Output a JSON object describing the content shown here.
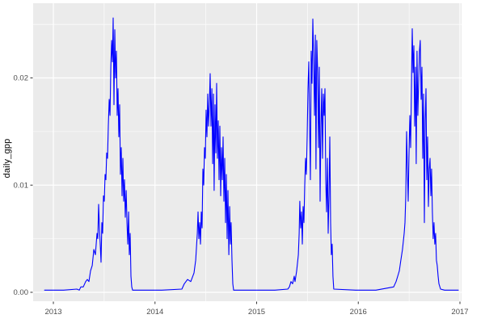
{
  "figure": {
    "title": "",
    "background": "#FFFFFF"
  },
  "style": {
    "panel_bg": "#EBEBEB",
    "grid_color": "#FFFFFF",
    "tick_label_color": "#4D4D4D",
    "axis_title_color": "#000000",
    "tick_mark_color": "#333333",
    "line_color": "#0000FF",
    "line_width": 1.1
  },
  "chart_data": {
    "type": "line",
    "title": "",
    "xlabel": "",
    "ylabel": "daily_gpp",
    "x_unit": "decimal_year",
    "xlim": [
      2012.801,
      2017.016
    ],
    "ylim": [
      -0.00083,
      0.02697
    ],
    "x_major_ticks": [
      2013,
      2014,
      2015,
      2016,
      2017
    ],
    "x_tick_labels": [
      "2013",
      "2014",
      "2015",
      "2016",
      "2017"
    ],
    "x_minor_ticks": [
      2013.5,
      2014.5,
      2015.5,
      2016.5
    ],
    "y_major_ticks": [
      0,
      0.01,
      0.02
    ],
    "y_tick_labels": [
      "0.00",
      "0.01",
      "0.02"
    ],
    "y_minor_ticks": [
      0.005,
      0.015,
      0.025
    ],
    "grid": true,
    "legend": "none",
    "series": [
      {
        "name": "daily_gpp",
        "color": "#0000FF",
        "points": [
          [
            2012.913,
            0.0002
          ],
          [
            2013.1,
            0.0002
          ],
          [
            2013.231,
            0.0003
          ],
          [
            2013.255,
            0.0002
          ],
          [
            2013.27,
            0.0005
          ],
          [
            2013.294,
            0.0005
          ],
          [
            2013.318,
            0.001
          ],
          [
            2013.334,
            0.0012
          ],
          [
            2013.35,
            0.001
          ],
          [
            2013.366,
            0.002
          ],
          [
            2013.382,
            0.0025
          ],
          [
            2013.398,
            0.004
          ],
          [
            2013.413,
            0.0035
          ],
          [
            2013.429,
            0.0055
          ],
          [
            2013.437,
            0.005
          ],
          [
            2013.445,
            0.0082
          ],
          [
            2013.453,
            0.006
          ],
          [
            2013.461,
            0.0045
          ],
          [
            2013.469,
            0.0028
          ],
          [
            2013.477,
            0.0065
          ],
          [
            2013.485,
            0.0055
          ],
          [
            2013.493,
            0.009
          ],
          [
            2013.501,
            0.0085
          ],
          [
            2013.509,
            0.011
          ],
          [
            2013.517,
            0.0105
          ],
          [
            2013.525,
            0.013
          ],
          [
            2013.533,
            0.0125
          ],
          [
            2013.541,
            0.0155
          ],
          [
            2013.549,
            0.018
          ],
          [
            2013.557,
            0.0165
          ],
          [
            2013.565,
            0.021
          ],
          [
            2013.573,
            0.0235
          ],
          [
            2013.581,
            0.0215
          ],
          [
            2013.588,
            0.0256
          ],
          [
            2013.596,
            0.0175
          ],
          [
            2013.604,
            0.0245
          ],
          [
            2013.612,
            0.02
          ],
          [
            2013.62,
            0.0225
          ],
          [
            2013.628,
            0.0165
          ],
          [
            2013.636,
            0.019
          ],
          [
            2013.644,
            0.0145
          ],
          [
            2013.652,
            0.0175
          ],
          [
            2013.66,
            0.011
          ],
          [
            2013.668,
            0.0135
          ],
          [
            2013.676,
            0.009
          ],
          [
            2013.684,
            0.0125
          ],
          [
            2013.692,
            0.0085
          ],
          [
            2013.7,
            0.0105
          ],
          [
            2013.708,
            0.007
          ],
          [
            2013.716,
            0.0095
          ],
          [
            2013.724,
            0.0065
          ],
          [
            2013.732,
            0.0045
          ],
          [
            2013.74,
            0.0075
          ],
          [
            2013.747,
            0.0035
          ],
          [
            2013.755,
            0.0055
          ],
          [
            2013.763,
            0.0015
          ],
          [
            2013.771,
            0.0005
          ],
          [
            2013.779,
            0.0002
          ],
          [
            2013.867,
            0.0002
          ],
          [
            2014.066,
            0.0002
          ],
          [
            2014.264,
            0.0003
          ],
          [
            2014.288,
            0.0008
          ],
          [
            2014.32,
            0.0012
          ],
          [
            2014.352,
            0.001
          ],
          [
            2014.384,
            0.0018
          ],
          [
            2014.4,
            0.003
          ],
          [
            2014.416,
            0.0055
          ],
          [
            2014.423,
            0.0075
          ],
          [
            2014.431,
            0.005
          ],
          [
            2014.439,
            0.0065
          ],
          [
            2014.447,
            0.0045
          ],
          [
            2014.455,
            0.0075
          ],
          [
            2014.463,
            0.006
          ],
          [
            2014.471,
            0.0115
          ],
          [
            2014.479,
            0.01
          ],
          [
            2014.487,
            0.0135
          ],
          [
            2014.495,
            0.0125
          ],
          [
            2014.503,
            0.017
          ],
          [
            2014.511,
            0.0145
          ],
          [
            2014.519,
            0.0185
          ],
          [
            2014.527,
            0.0155
          ],
          [
            2014.535,
            0.0175
          ],
          [
            2014.543,
            0.0204
          ],
          [
            2014.551,
            0.0155
          ],
          [
            2014.559,
            0.019
          ],
          [
            2014.567,
            0.012
          ],
          [
            2014.575,
            0.0185
          ],
          [
            2014.582,
            0.0095
          ],
          [
            2014.59,
            0.0175
          ],
          [
            2014.598,
            0.013
          ],
          [
            2014.606,
            0.0195
          ],
          [
            2014.614,
            0.0125
          ],
          [
            2014.622,
            0.016
          ],
          [
            2014.63,
            0.0105
          ],
          [
            2014.638,
            0.0155
          ],
          [
            2014.646,
            0.009
          ],
          [
            2014.654,
            0.0135
          ],
          [
            2014.662,
            0.0105
          ],
          [
            2014.67,
            0.0145
          ],
          [
            2014.678,
            0.0085
          ],
          [
            2014.686,
            0.0125
          ],
          [
            2014.694,
            0.0065
          ],
          [
            2014.702,
            0.011
          ],
          [
            2014.71,
            0.005
          ],
          [
            2014.718,
            0.0095
          ],
          [
            2014.726,
            0.0035
          ],
          [
            2014.734,
            0.008
          ],
          [
            2014.742,
            0.0045
          ],
          [
            2014.749,
            0.0065
          ],
          [
            2014.757,
            0.003
          ],
          [
            2014.765,
            0.0008
          ],
          [
            2014.773,
            0.0002
          ],
          [
            2014.94,
            0.0002
          ],
          [
            2015.179,
            0.0002
          ],
          [
            2015.306,
            0.0003
          ],
          [
            2015.322,
            0.0005
          ],
          [
            2015.338,
            0.001
          ],
          [
            2015.354,
            0.0008
          ],
          [
            2015.37,
            0.0015
          ],
          [
            2015.378,
            0.001
          ],
          [
            2015.394,
            0.002
          ],
          [
            2015.41,
            0.0035
          ],
          [
            2015.418,
            0.0055
          ],
          [
            2015.425,
            0.0085
          ],
          [
            2015.433,
            0.006
          ],
          [
            2015.441,
            0.0075
          ],
          [
            2015.449,
            0.0045
          ],
          [
            2015.457,
            0.008
          ],
          [
            2015.465,
            0.0065
          ],
          [
            2015.473,
            0.01
          ],
          [
            2015.481,
            0.0125
          ],
          [
            2015.489,
            0.011
          ],
          [
            2015.497,
            0.0145
          ],
          [
            2015.505,
            0.019
          ],
          [
            2015.513,
            0.0215
          ],
          [
            2015.521,
            0.016
          ],
          [
            2015.529,
            0.0105
          ],
          [
            2015.537,
            0.0225
          ],
          [
            2015.545,
            0.0195
          ],
          [
            2015.553,
            0.0255
          ],
          [
            2015.561,
            0.022
          ],
          [
            2015.569,
            0.0165
          ],
          [
            2015.577,
            0.024
          ],
          [
            2015.584,
            0.0115
          ],
          [
            2015.592,
            0.0235
          ],
          [
            2015.6,
            0.0205
          ],
          [
            2015.608,
            0.0135
          ],
          [
            2015.616,
            0.021
          ],
          [
            2015.624,
            0.0085
          ],
          [
            2015.632,
            0.0155
          ],
          [
            2015.64,
            0.019
          ],
          [
            2015.648,
            0.0125
          ],
          [
            2015.656,
            0.0185
          ],
          [
            2015.664,
            0.0165
          ],
          [
            2015.672,
            0.019
          ],
          [
            2015.68,
            0.0105
          ],
          [
            2015.688,
            0.0075
          ],
          [
            2015.696,
            0.0125
          ],
          [
            2015.704,
            0.0055
          ],
          [
            2015.712,
            0.009
          ],
          [
            2015.72,
            0.0145
          ],
          [
            2015.728,
            0.0065
          ],
          [
            2015.735,
            0.0035
          ],
          [
            2015.743,
            0.0045
          ],
          [
            2015.751,
            0.0015
          ],
          [
            2015.759,
            0.0003
          ],
          [
            2015.974,
            0.0002
          ],
          [
            2016.173,
            0.0002
          ],
          [
            2016.348,
            0.0005
          ],
          [
            2016.372,
            0.001
          ],
          [
            2016.388,
            0.0015
          ],
          [
            2016.404,
            0.002
          ],
          [
            2016.419,
            0.003
          ],
          [
            2016.435,
            0.004
          ],
          [
            2016.451,
            0.0055
          ],
          [
            2016.459,
            0.0065
          ],
          [
            2016.467,
            0.009
          ],
          [
            2016.475,
            0.015
          ],
          [
            2016.483,
            0.0115
          ],
          [
            2016.491,
            0.0085
          ],
          [
            2016.499,
            0.013
          ],
          [
            2016.507,
            0.0165
          ],
          [
            2016.515,
            0.0135
          ],
          [
            2016.523,
            0.019
          ],
          [
            2016.531,
            0.0246
          ],
          [
            2016.539,
            0.0205
          ],
          [
            2016.547,
            0.023
          ],
          [
            2016.555,
            0.0155
          ],
          [
            2016.563,
            0.021
          ],
          [
            2016.57,
            0.012
          ],
          [
            2016.578,
            0.0225
          ],
          [
            2016.586,
            0.0165
          ],
          [
            2016.594,
            0.0195
          ],
          [
            2016.602,
            0.0225
          ],
          [
            2016.61,
            0.0235
          ],
          [
            2016.618,
            0.018
          ],
          [
            2016.626,
            0.021
          ],
          [
            2016.634,
            0.0125
          ],
          [
            2016.642,
            0.0185
          ],
          [
            2016.65,
            0.0065
          ],
          [
            2016.658,
            0.016
          ],
          [
            2016.666,
            0.019
          ],
          [
            2016.674,
            0.0105
          ],
          [
            2016.682,
            0.0145
          ],
          [
            2016.69,
            0.008
          ],
          [
            2016.698,
            0.0115
          ],
          [
            2016.706,
            0.0125
          ],
          [
            2016.714,
            0.009
          ],
          [
            2016.721,
            0.0115
          ],
          [
            2016.729,
            0.0075
          ],
          [
            2016.737,
            0.005
          ],
          [
            2016.745,
            0.0065
          ],
          [
            2016.753,
            0.0045
          ],
          [
            2016.761,
            0.0055
          ],
          [
            2016.769,
            0.003
          ],
          [
            2016.777,
            0.0025
          ],
          [
            2016.785,
            0.0015
          ],
          [
            2016.793,
            0.0008
          ],
          [
            2016.809,
            0.0003
          ],
          [
            2016.849,
            0.0002
          ],
          [
            2016.928,
            0.0002
          ],
          [
            2016.984,
            0.0002
          ]
        ]
      }
    ]
  }
}
